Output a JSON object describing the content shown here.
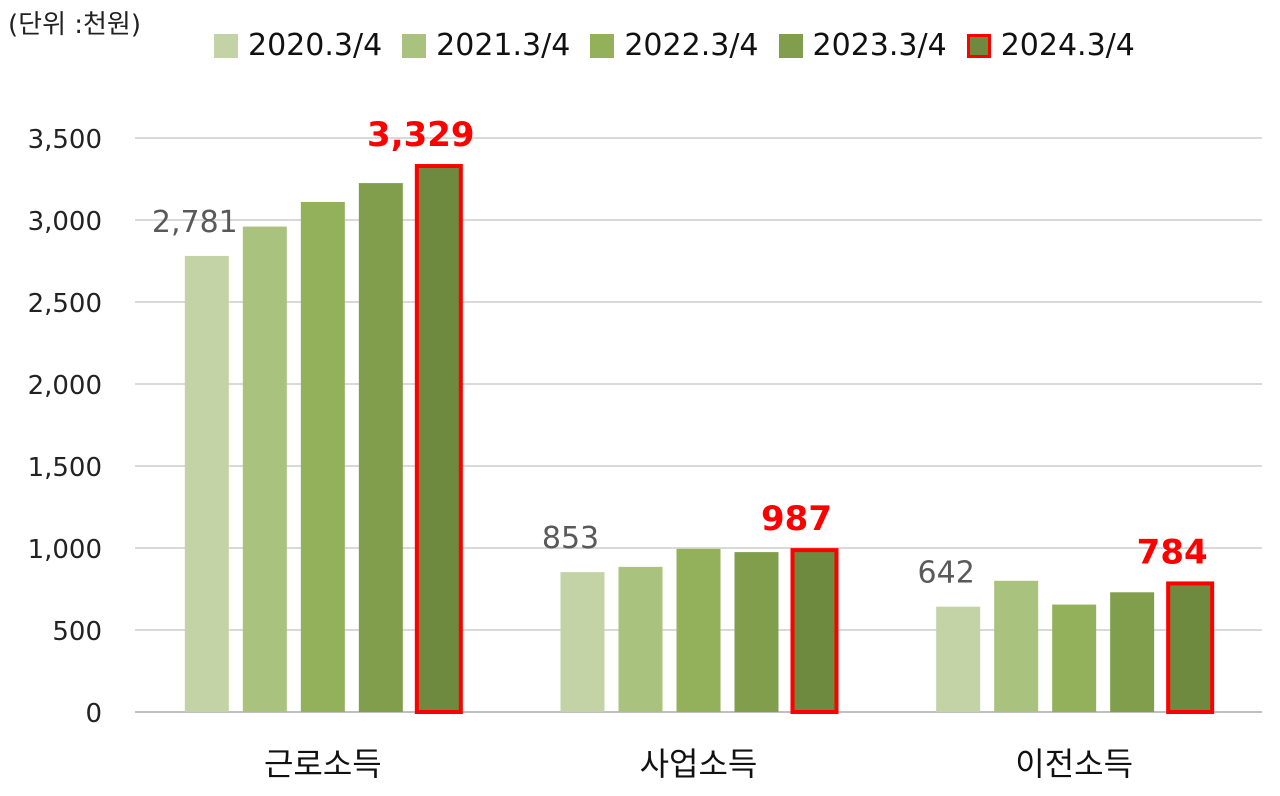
{
  "unit_label": "(단위 :천원)",
  "colors": {
    "series": [
      "#c3d3a5",
      "#a9c37e",
      "#93b05a",
      "#809e4c",
      "#6d8a3e"
    ],
    "highlight_border": "#ff0000",
    "highlight_text": "#ff0000",
    "grid": "#d9d9d9",
    "label_text": "#595959"
  },
  "chart_data": {
    "type": "bar",
    "title": "",
    "xlabel": "",
    "ylabel": "",
    "ylim": [
      0,
      3500
    ],
    "yticks": [
      "0",
      "500",
      "1,000",
      "1,500",
      "2,000",
      "2,500",
      "3,000",
      "3,500"
    ],
    "grid": true,
    "legend_position": "top",
    "categories": [
      "근로소득",
      "사업소득",
      "이전소득"
    ],
    "series": [
      {
        "name": "2020.3/4",
        "values": [
          2781,
          853,
          642
        ]
      },
      {
        "name": "2021.3/4",
        "values": [
          2960,
          885,
          800
        ]
      },
      {
        "name": "2022.3/4",
        "values": [
          3110,
          995,
          655
        ]
      },
      {
        "name": "2023.3/4",
        "values": [
          3225,
          975,
          730
        ]
      },
      {
        "name": "2024.3/4",
        "values": [
          3329,
          987,
          784
        ]
      }
    ],
    "data_labels": [
      {
        "category": 0,
        "series": 0,
        "text": "2,781",
        "style": "normal"
      },
      {
        "category": 0,
        "series": 4,
        "text": "3,329",
        "style": "highlight"
      },
      {
        "category": 1,
        "series": 0,
        "text": "853",
        "style": "normal"
      },
      {
        "category": 1,
        "series": 4,
        "text": "987",
        "style": "highlight"
      },
      {
        "category": 2,
        "series": 0,
        "text": "642",
        "style": "normal"
      },
      {
        "category": 2,
        "series": 4,
        "text": "784",
        "style": "highlight"
      }
    ],
    "highlight_series": 4
  }
}
